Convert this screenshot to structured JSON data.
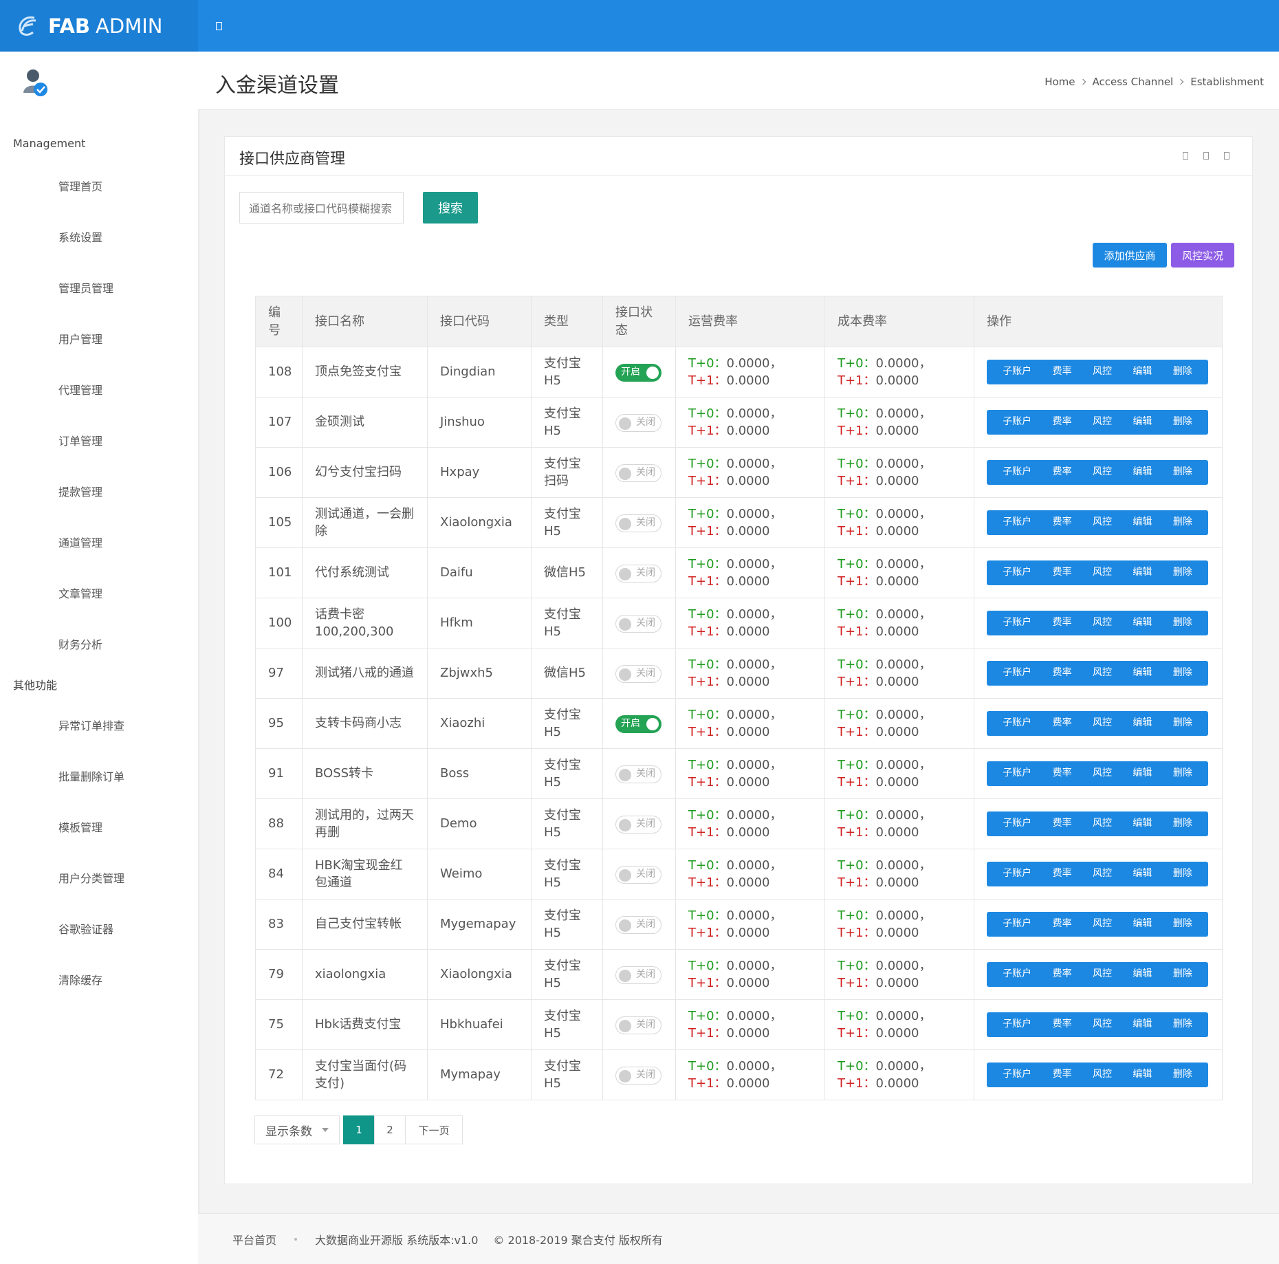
{
  "brand": {
    "bold": "FAB",
    "light": "ADMIN"
  },
  "sidebar": {
    "groups": [
      {
        "title": "Management",
        "items": [
          "管理首页",
          "系统设置",
          "管理员管理",
          "用户管理",
          "代理管理",
          "订单管理",
          "提款管理",
          "通道管理",
          "文章管理",
          "财务分析"
        ]
      },
      {
        "title": "其他功能",
        "items": [
          "异常订单排查",
          "批量删除订单",
          "模板管理",
          "用户分类管理",
          "谷歌验证器",
          "清除缓存"
        ]
      }
    ]
  },
  "header": {
    "title": "入金渠道设置",
    "breadcrumb": [
      "Home",
      "Access Channel",
      "Establishment"
    ]
  },
  "card": {
    "title": "接口供应商管理",
    "search_placeholder": "通道名称或接口代码模糊搜索",
    "search_button": "搜索",
    "buttons": [
      "添加供应商",
      "风控实况"
    ]
  },
  "table": {
    "columns": [
      "编号",
      "接口名称",
      "接口代码",
      "类型",
      "接口状态",
      "运营费率",
      "成本费率",
      "操作"
    ],
    "actions": [
      "子账户",
      "费率",
      "风控",
      "编辑",
      "删除"
    ],
    "fee": {
      "t0_label": "T+0：",
      "t0": "0.0000，",
      "t1_label": "T+1：",
      "t1": "0.0000"
    },
    "rows": [
      [
        108,
        "顶点免签支付宝",
        "Dingdian",
        "支付宝H5",
        "开启"
      ],
      [
        107,
        "金硕测试",
        "Jinshuo",
        "支付宝H5",
        "关闭"
      ],
      [
        106,
        "幻兮支付宝扫码",
        "Hxpay",
        "支付宝扫码",
        "关闭"
      ],
      [
        105,
        "测试通道，一会删除",
        "Xiaolongxia",
        "支付宝H5",
        "关闭"
      ],
      [
        101,
        "代付系统测试",
        "Daifu",
        "微信H5",
        "关闭"
      ],
      [
        100,
        "话费卡密100,200,300",
        "Hfkm",
        "支付宝H5",
        "关闭"
      ],
      [
        97,
        "测试猪八戒的通道",
        "Zbjwxh5",
        "微信H5",
        "关闭"
      ],
      [
        95,
        "支转卡码商小志",
        "Xiaozhi",
        "支付宝H5",
        "开启"
      ],
      [
        91,
        "BOSS转卡",
        "Boss",
        "支付宝H5",
        "关闭"
      ],
      [
        88,
        "测试用的，过两天再删",
        "Demo",
        "支付宝H5",
        "关闭"
      ],
      [
        84,
        "HBK淘宝现金红包通道",
        "Weimo",
        "支付宝H5",
        "关闭"
      ],
      [
        83,
        "自己支付宝转帐",
        "Mygemapay",
        "支付宝H5",
        "关闭"
      ],
      [
        79,
        "xiaolongxia",
        "Xiaolongxia",
        "支付宝H5",
        "关闭"
      ],
      [
        75,
        "Hbk话费支付宝",
        "Hbkhuafei",
        "支付宝H5",
        "关闭"
      ],
      [
        72,
        "支付宝当面付(码支付)",
        "Mymapay",
        "支付宝H5",
        "关闭"
      ]
    ],
    "on_label": "开启"
  },
  "pagination": {
    "page_size_label": "显示条数",
    "pages": [
      1,
      2
    ],
    "next": "下一页"
  },
  "footer": [
    "平台首页",
    "大数据商业开源版 系统版本:v1.0",
    "© 2018-2019 聚合支付 版权所有"
  ]
}
